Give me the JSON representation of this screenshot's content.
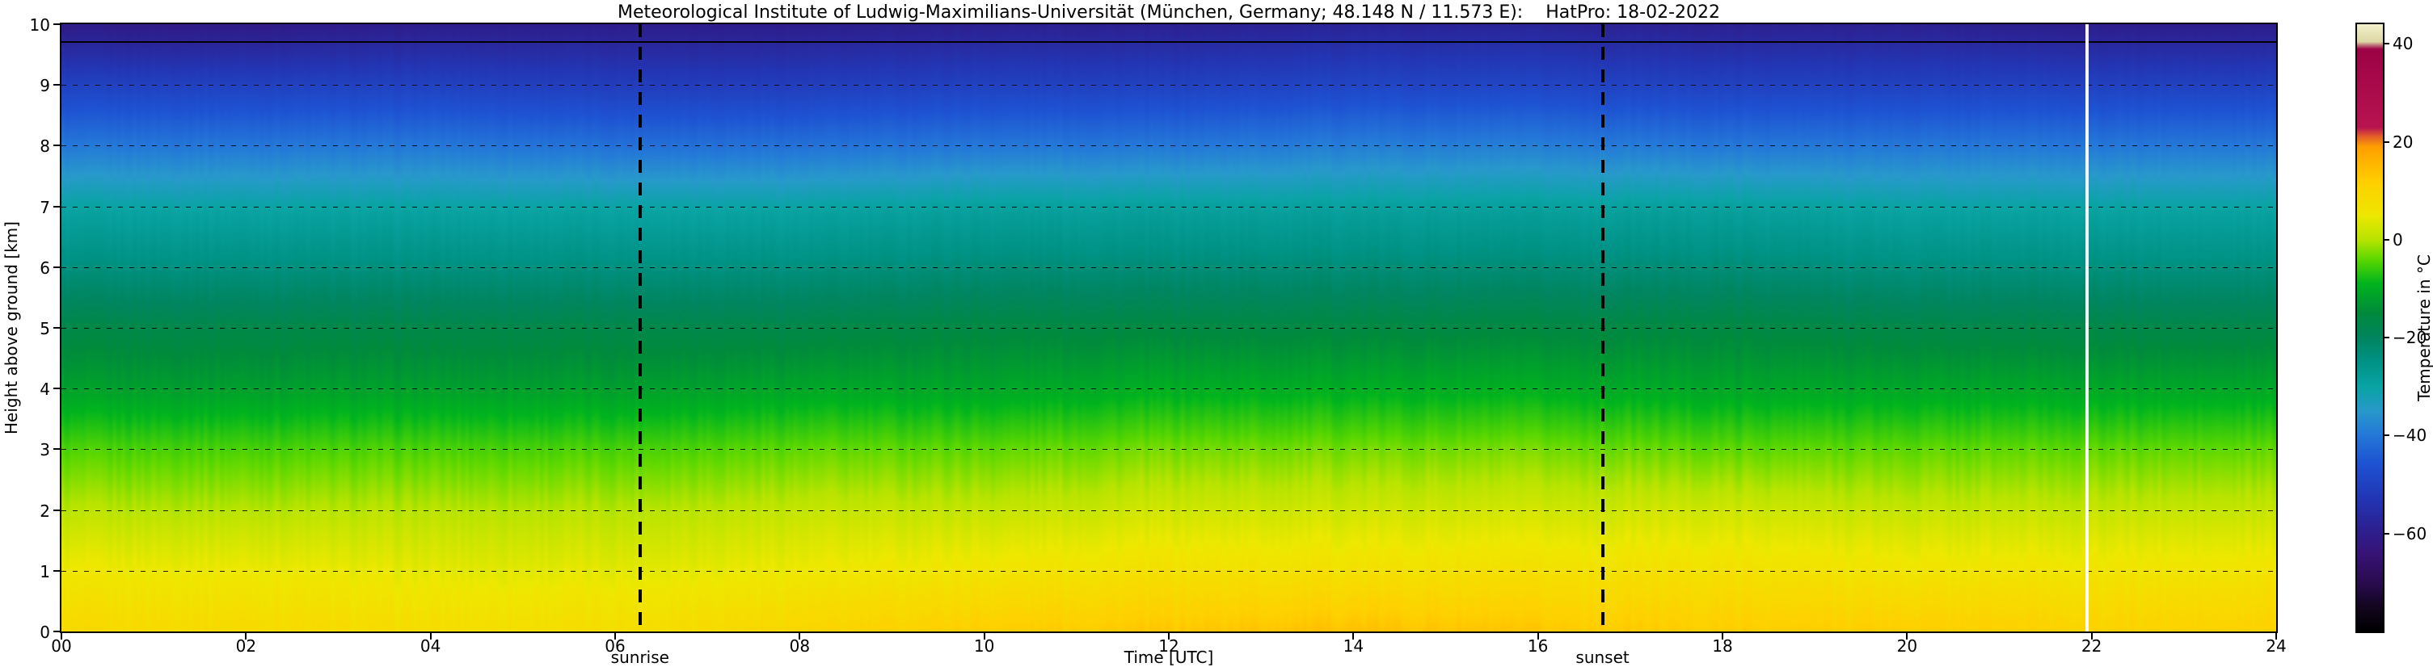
{
  "chart_data": {
    "type": "heatmap",
    "title": "Meteorological Institute of Ludwig-Maximilians-Universität (München, Germany; 48.148 N / 11.573 E):    HatPro: 18-02-2022",
    "xlabel": "Time [UTC]",
    "ylabel": "Height above ground [km]",
    "colorbar_label": "Temperature in  °C",
    "x_ticks": [
      "00",
      "02",
      "04",
      "06",
      "08",
      "10",
      "12",
      "14",
      "16",
      "18",
      "20",
      "22",
      "24"
    ],
    "x_tick_values": [
      0,
      2,
      4,
      6,
      8,
      10,
      12,
      14,
      16,
      18,
      20,
      22,
      24
    ],
    "y_ticks": [
      "0",
      "1",
      "2",
      "3",
      "4",
      "5",
      "6",
      "7",
      "8",
      "9",
      "10"
    ],
    "y_tick_values": [
      0,
      1,
      2,
      3,
      4,
      5,
      6,
      7,
      8,
      9,
      10
    ],
    "xlim": [
      0,
      24
    ],
    "ylim": [
      0,
      10
    ],
    "grid_dashed_lines_km": [
      1,
      2,
      3,
      4,
      5,
      6,
      7,
      8,
      9
    ],
    "solid_line_km": 9.72,
    "sunrise_label": "sunrise",
    "sunset_label": "sunset",
    "sunrise_time_utc": 6.27,
    "sunset_time_utc": 16.7,
    "missing_data_time_utc": 21.95,
    "colorbar_ticks": [
      "40",
      "20",
      "0",
      "−20",
      "−40",
      "−60"
    ],
    "colorbar_tick_values": [
      40,
      20,
      0,
      -20,
      -40,
      -60
    ],
    "temp_scale_range": [
      -80,
      44
    ],
    "colormap_stops": [
      {
        "t": -80,
        "c": "#000000"
      },
      {
        "t": -75,
        "c": "#140620"
      },
      {
        "t": -70,
        "c": "#2a0c50"
      },
      {
        "t": -64,
        "c": "#381478"
      },
      {
        "t": -59,
        "c": "#2c2192"
      },
      {
        "t": -53,
        "c": "#2336b4"
      },
      {
        "t": -46,
        "c": "#1e52d2"
      },
      {
        "t": -40,
        "c": "#2478d8"
      },
      {
        "t": -35,
        "c": "#2899cb"
      },
      {
        "t": -30,
        "c": "#0aa4a4"
      },
      {
        "t": -25,
        "c": "#009387"
      },
      {
        "t": -20,
        "c": "#00855f"
      },
      {
        "t": -15,
        "c": "#008a3c"
      },
      {
        "t": -9,
        "c": "#00b41e"
      },
      {
        "t": -4,
        "c": "#5cd800"
      },
      {
        "t": 0,
        "c": "#b8e400"
      },
      {
        "t": 5,
        "c": "#eee800"
      },
      {
        "t": 12,
        "c": "#ffcf00"
      },
      {
        "t": 19,
        "c": "#ffa000"
      },
      {
        "t": 21,
        "c": "#e66428"
      },
      {
        "t": 23,
        "c": "#b81450"
      },
      {
        "t": 39,
        "c": "#9c0346"
      },
      {
        "t": 40.5,
        "c": "#ded8a6"
      },
      {
        "t": 44,
        "c": "#f4f0cc"
      }
    ],
    "grid": {
      "times_utc": [
        0,
        2,
        4,
        6,
        8,
        10,
        12,
        14,
        16,
        18,
        20,
        22,
        24
      ],
      "heights_km": [
        0,
        1,
        2,
        3,
        4,
        5,
        6,
        7,
        8,
        9,
        10
      ],
      "temperature_c": [
        [
          9,
          5,
          0,
          -5,
          -12,
          -17,
          -24,
          -30,
          -40,
          -50,
          -61
        ],
        [
          9,
          5,
          0,
          -5,
          -12,
          -17,
          -24,
          -30,
          -40,
          -50,
          -61
        ],
        [
          8,
          4,
          0,
          -5,
          -12,
          -17,
          -24,
          -30,
          -40,
          -50,
          -60
        ],
        [
          8,
          4,
          0,
          -5,
          -12,
          -17,
          -24,
          -30,
          -41,
          -51,
          -60
        ],
        [
          10,
          5,
          1,
          -4,
          -11,
          -17,
          -24,
          -30,
          -41,
          -51,
          -60
        ],
        [
          12,
          6,
          1,
          -4,
          -11,
          -16,
          -23,
          -29,
          -40,
          -50,
          -59
        ],
        [
          13,
          7,
          2,
          -3,
          -10,
          -16,
          -23,
          -29,
          -40,
          -50,
          -59
        ],
        [
          14,
          7,
          2,
          -3,
          -10,
          -16,
          -23,
          -29,
          -39,
          -49,
          -58
        ],
        [
          13,
          7,
          2,
          -3,
          -10,
          -16,
          -23,
          -29,
          -39,
          -49,
          -58
        ],
        [
          12,
          7,
          2,
          -4,
          -11,
          -16,
          -23,
          -29,
          -40,
          -50,
          -59
        ],
        [
          12,
          6,
          1,
          -4,
          -11,
          -17,
          -24,
          -30,
          -40,
          -50,
          -59
        ],
        [
          11,
          6,
          1,
          -4,
          -11,
          -17,
          -24,
          -30,
          -40,
          -50,
          -60
        ],
        [
          11,
          6,
          1,
          -4,
          -11,
          -17,
          -24,
          -30,
          -40,
          -50,
          -60
        ]
      ]
    }
  }
}
